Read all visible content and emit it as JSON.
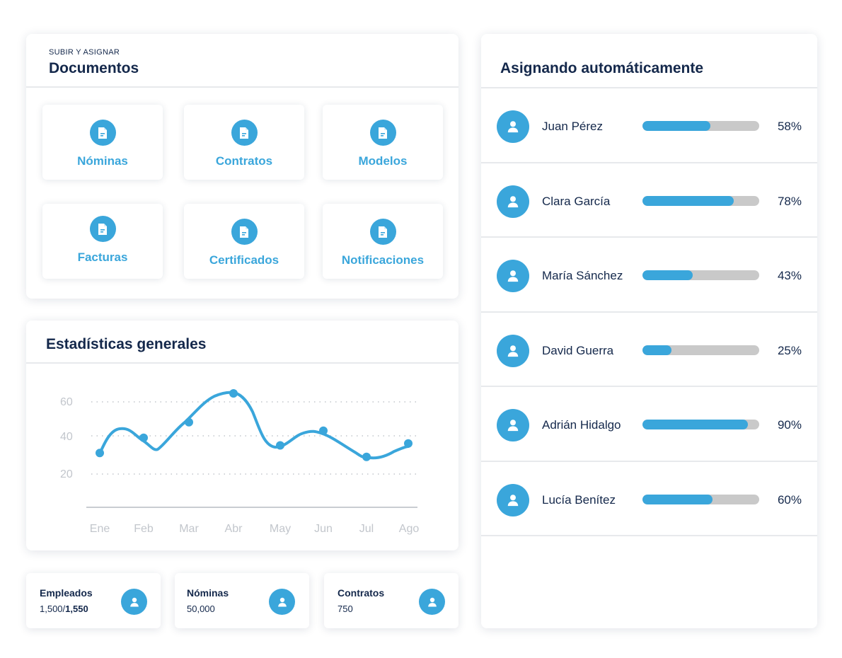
{
  "documents": {
    "eyebrow": "SUBIR Y ASIGNAR",
    "title": "Documentos",
    "tiles": [
      {
        "label": "Nóminas",
        "icon": "document-icon"
      },
      {
        "label": "Contratos",
        "icon": "document-icon"
      },
      {
        "label": "Modelos",
        "icon": "document-icon"
      },
      {
        "label": "Facturas",
        "icon": "document-icon"
      },
      {
        "label": "Certificados",
        "icon": "document-icon"
      },
      {
        "label": "Notificaciones",
        "icon": "document-icon"
      }
    ]
  },
  "stats": {
    "title": "Estadísticas generales"
  },
  "chart_data": {
    "type": "line",
    "title": "",
    "categories": [
      "Ene",
      "Feb",
      "Mar",
      "Abr",
      "May",
      "Jun",
      "Jul",
      "Ago"
    ],
    "y_ticks": [
      "60",
      "40",
      "20"
    ],
    "series": [
      {
        "values": [
          31,
          39,
          48,
          65,
          35,
          43,
          29,
          36
        ]
      }
    ],
    "ylim": [
      0,
      70
    ],
    "grid": "dotted horizontal",
    "color": "#3aa6db"
  },
  "summary": [
    {
      "label": "Empleados",
      "value": "1,500/",
      "value_bold": "1,550",
      "icon": "user-icon"
    },
    {
      "label": "Nóminas",
      "value": "50,000",
      "value_bold": "",
      "icon": "user-icon"
    },
    {
      "label": "Contratos",
      "value": "750",
      "value_bold": "",
      "icon": "user-icon"
    }
  ],
  "assign": {
    "title": "Asignando automáticamente",
    "rows": [
      {
        "name": "Juan Pérez",
        "percent": 58,
        "percent_label": "58%"
      },
      {
        "name": "Clara García",
        "percent": 78,
        "percent_label": "78%"
      },
      {
        "name": "María Sánchez",
        "percent": 43,
        "percent_label": "43%"
      },
      {
        "name": "David Guerra",
        "percent": 25,
        "percent_label": "25%"
      },
      {
        "name": "Adrián Hidalgo",
        "percent": 90,
        "percent_label": "90%"
      },
      {
        "name": "Lucía Benítez",
        "percent": 60,
        "percent_label": "60%"
      }
    ]
  },
  "colors": {
    "accent": "#3aa6db",
    "text": "#14284b",
    "bar_track": "#c9c9c9"
  }
}
